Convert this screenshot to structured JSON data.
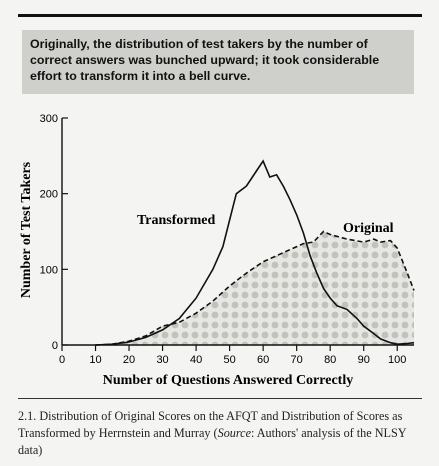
{
  "callout": {
    "text": "Originally, the distribution of test takers by the number of correct answers was bunched upward; it took considerable effort to transform it into a bell curve."
  },
  "caption": {
    "number": "2.1.",
    "text_a": " Distribution of Original Scores on the AFQT and Distribution of Scores as Transformed by Herrnstein and Murray (",
    "source_word": "Source",
    "text_b": ": Authors' analysis of the NLSY data)"
  },
  "chart_data": {
    "type": "line",
    "xlabel": "Number of Questions Answered Correctly",
    "ylabel": "Number of Test Takers",
    "xlim": [
      0,
      105
    ],
    "ylim": [
      0,
      300
    ],
    "x_ticks": [
      0,
      10,
      20,
      30,
      40,
      50,
      60,
      70,
      80,
      90,
      100
    ],
    "y_ticks": [
      0,
      100,
      200,
      300
    ],
    "grid": false,
    "series": [
      {
        "name": "Transformed",
        "style": "solid",
        "x": [
          10,
          15,
          20,
          25,
          30,
          35,
          40,
          45,
          48,
          50,
          52,
          55,
          58,
          60,
          62,
          64,
          66,
          68,
          70,
          72,
          74,
          76,
          78,
          80,
          82,
          85,
          88,
          90,
          93,
          95,
          98,
          100,
          103,
          105
        ],
        "y": [
          0,
          1,
          4,
          10,
          20,
          35,
          62,
          100,
          130,
          165,
          200,
          210,
          230,
          243,
          222,
          225,
          210,
          192,
          172,
          148,
          118,
          95,
          75,
          62,
          52,
          47,
          35,
          25,
          15,
          8,
          3,
          1,
          2,
          3
        ]
      },
      {
        "name": "Original",
        "style": "dashed",
        "x": [
          10,
          15,
          20,
          25,
          30,
          35,
          40,
          45,
          50,
          55,
          60,
          65,
          70,
          72,
          75,
          78,
          80,
          85,
          90,
          93,
          95,
          98,
          100,
          103,
          105
        ],
        "y": [
          0,
          1,
          5,
          12,
          25,
          30,
          42,
          58,
          78,
          95,
          110,
          120,
          130,
          134,
          136,
          150,
          146,
          140,
          136,
          140,
          136,
          138,
          128,
          95,
          72
        ]
      }
    ]
  }
}
